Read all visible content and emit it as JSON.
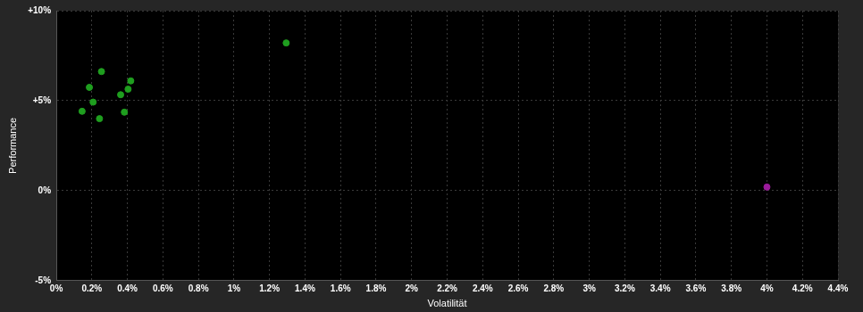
{
  "chart_data": {
    "type": "scatter",
    "x_label": "Volatilität",
    "y_label": "Performance",
    "xlim": [
      0,
      4.4
    ],
    "ylim": [
      -5,
      10
    ],
    "xticks": [
      {
        "value": 0,
        "label": "0%"
      },
      {
        "value": 0.2,
        "label": "0.2%"
      },
      {
        "value": 0.4,
        "label": "0.4%"
      },
      {
        "value": 0.6,
        "label": "0.6%"
      },
      {
        "value": 0.8,
        "label": "0.8%"
      },
      {
        "value": 1,
        "label": "1%"
      },
      {
        "value": 1.2,
        "label": "1.2%"
      },
      {
        "value": 1.4,
        "label": "1.4%"
      },
      {
        "value": 1.6,
        "label": "1.6%"
      },
      {
        "value": 1.8,
        "label": "1.8%"
      },
      {
        "value": 2,
        "label": "2%"
      },
      {
        "value": 2.2,
        "label": "2.2%"
      },
      {
        "value": 2.4,
        "label": "2.4%"
      },
      {
        "value": 2.6,
        "label": "2.6%"
      },
      {
        "value": 2.8,
        "label": "2.8%"
      },
      {
        "value": 3,
        "label": "3%"
      },
      {
        "value": 3.2,
        "label": "3.2%"
      },
      {
        "value": 3.4,
        "label": "3.4%"
      },
      {
        "value": 3.6,
        "label": "3.6%"
      },
      {
        "value": 3.8,
        "label": "3.8%"
      },
      {
        "value": 4,
        "label": "4%"
      },
      {
        "value": 4.2,
        "label": "4.2%"
      },
      {
        "value": 4.4,
        "label": "4.4%"
      }
    ],
    "yticks": [
      {
        "value": -5,
        "label": "-5%"
      },
      {
        "value": 0,
        "label": "0%"
      },
      {
        "value": 5,
        "label": "+5%"
      },
      {
        "value": 10,
        "label": "+10%"
      }
    ],
    "grid": true,
    "series": [
      {
        "color": "#1f9e1f",
        "x": [
          0.145,
          0.186,
          0.207,
          0.254,
          0.243,
          0.362,
          0.383,
          0.404,
          0.419,
          1.294
        ],
        "y": [
          4.41,
          5.74,
          4.92,
          6.62,
          4.0,
          5.33,
          4.36,
          5.64,
          6.1,
          8.21
        ]
      },
      {
        "color": "#9b1b9b",
        "x": [
          4.0
        ],
        "y": [
          0.2
        ]
      }
    ]
  }
}
